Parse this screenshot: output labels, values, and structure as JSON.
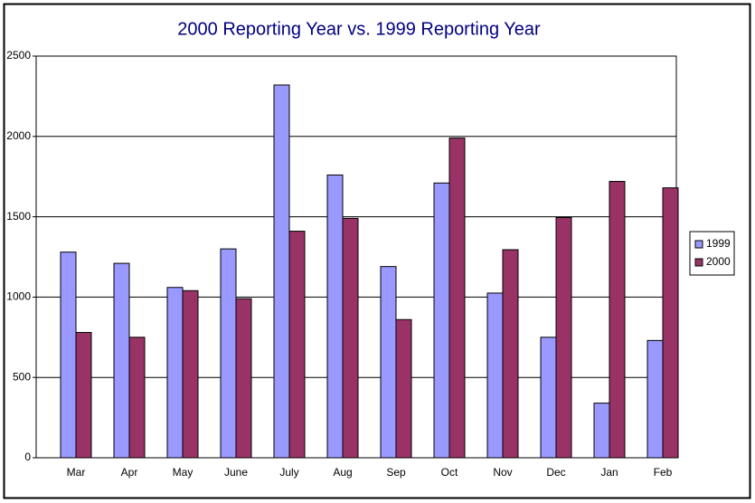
{
  "chart_data": {
    "type": "bar",
    "title": "2000 Reporting Year vs. 1999 Reporting Year",
    "categories": [
      "Mar",
      "Apr",
      "May",
      "June",
      "July",
      "Aug",
      "Sep",
      "Oct",
      "Nov",
      "Dec",
      "Jan",
      "Feb"
    ],
    "series": [
      {
        "name": "1999",
        "color": "#9999ff",
        "values": [
          1280,
          1210,
          1060,
          1300,
          2320,
          1760,
          1190,
          1710,
          1025,
          750,
          340,
          730
        ]
      },
      {
        "name": "2000",
        "color": "#993366",
        "values": [
          780,
          750,
          1040,
          990,
          1410,
          1490,
          860,
          1990,
          1295,
          1495,
          1720,
          1680
        ]
      }
    ],
    "ylim": [
      0,
      2500
    ],
    "yticks": [
      0,
      500,
      1000,
      1500,
      2000,
      2500
    ],
    "grid": true,
    "legend": "right"
  }
}
